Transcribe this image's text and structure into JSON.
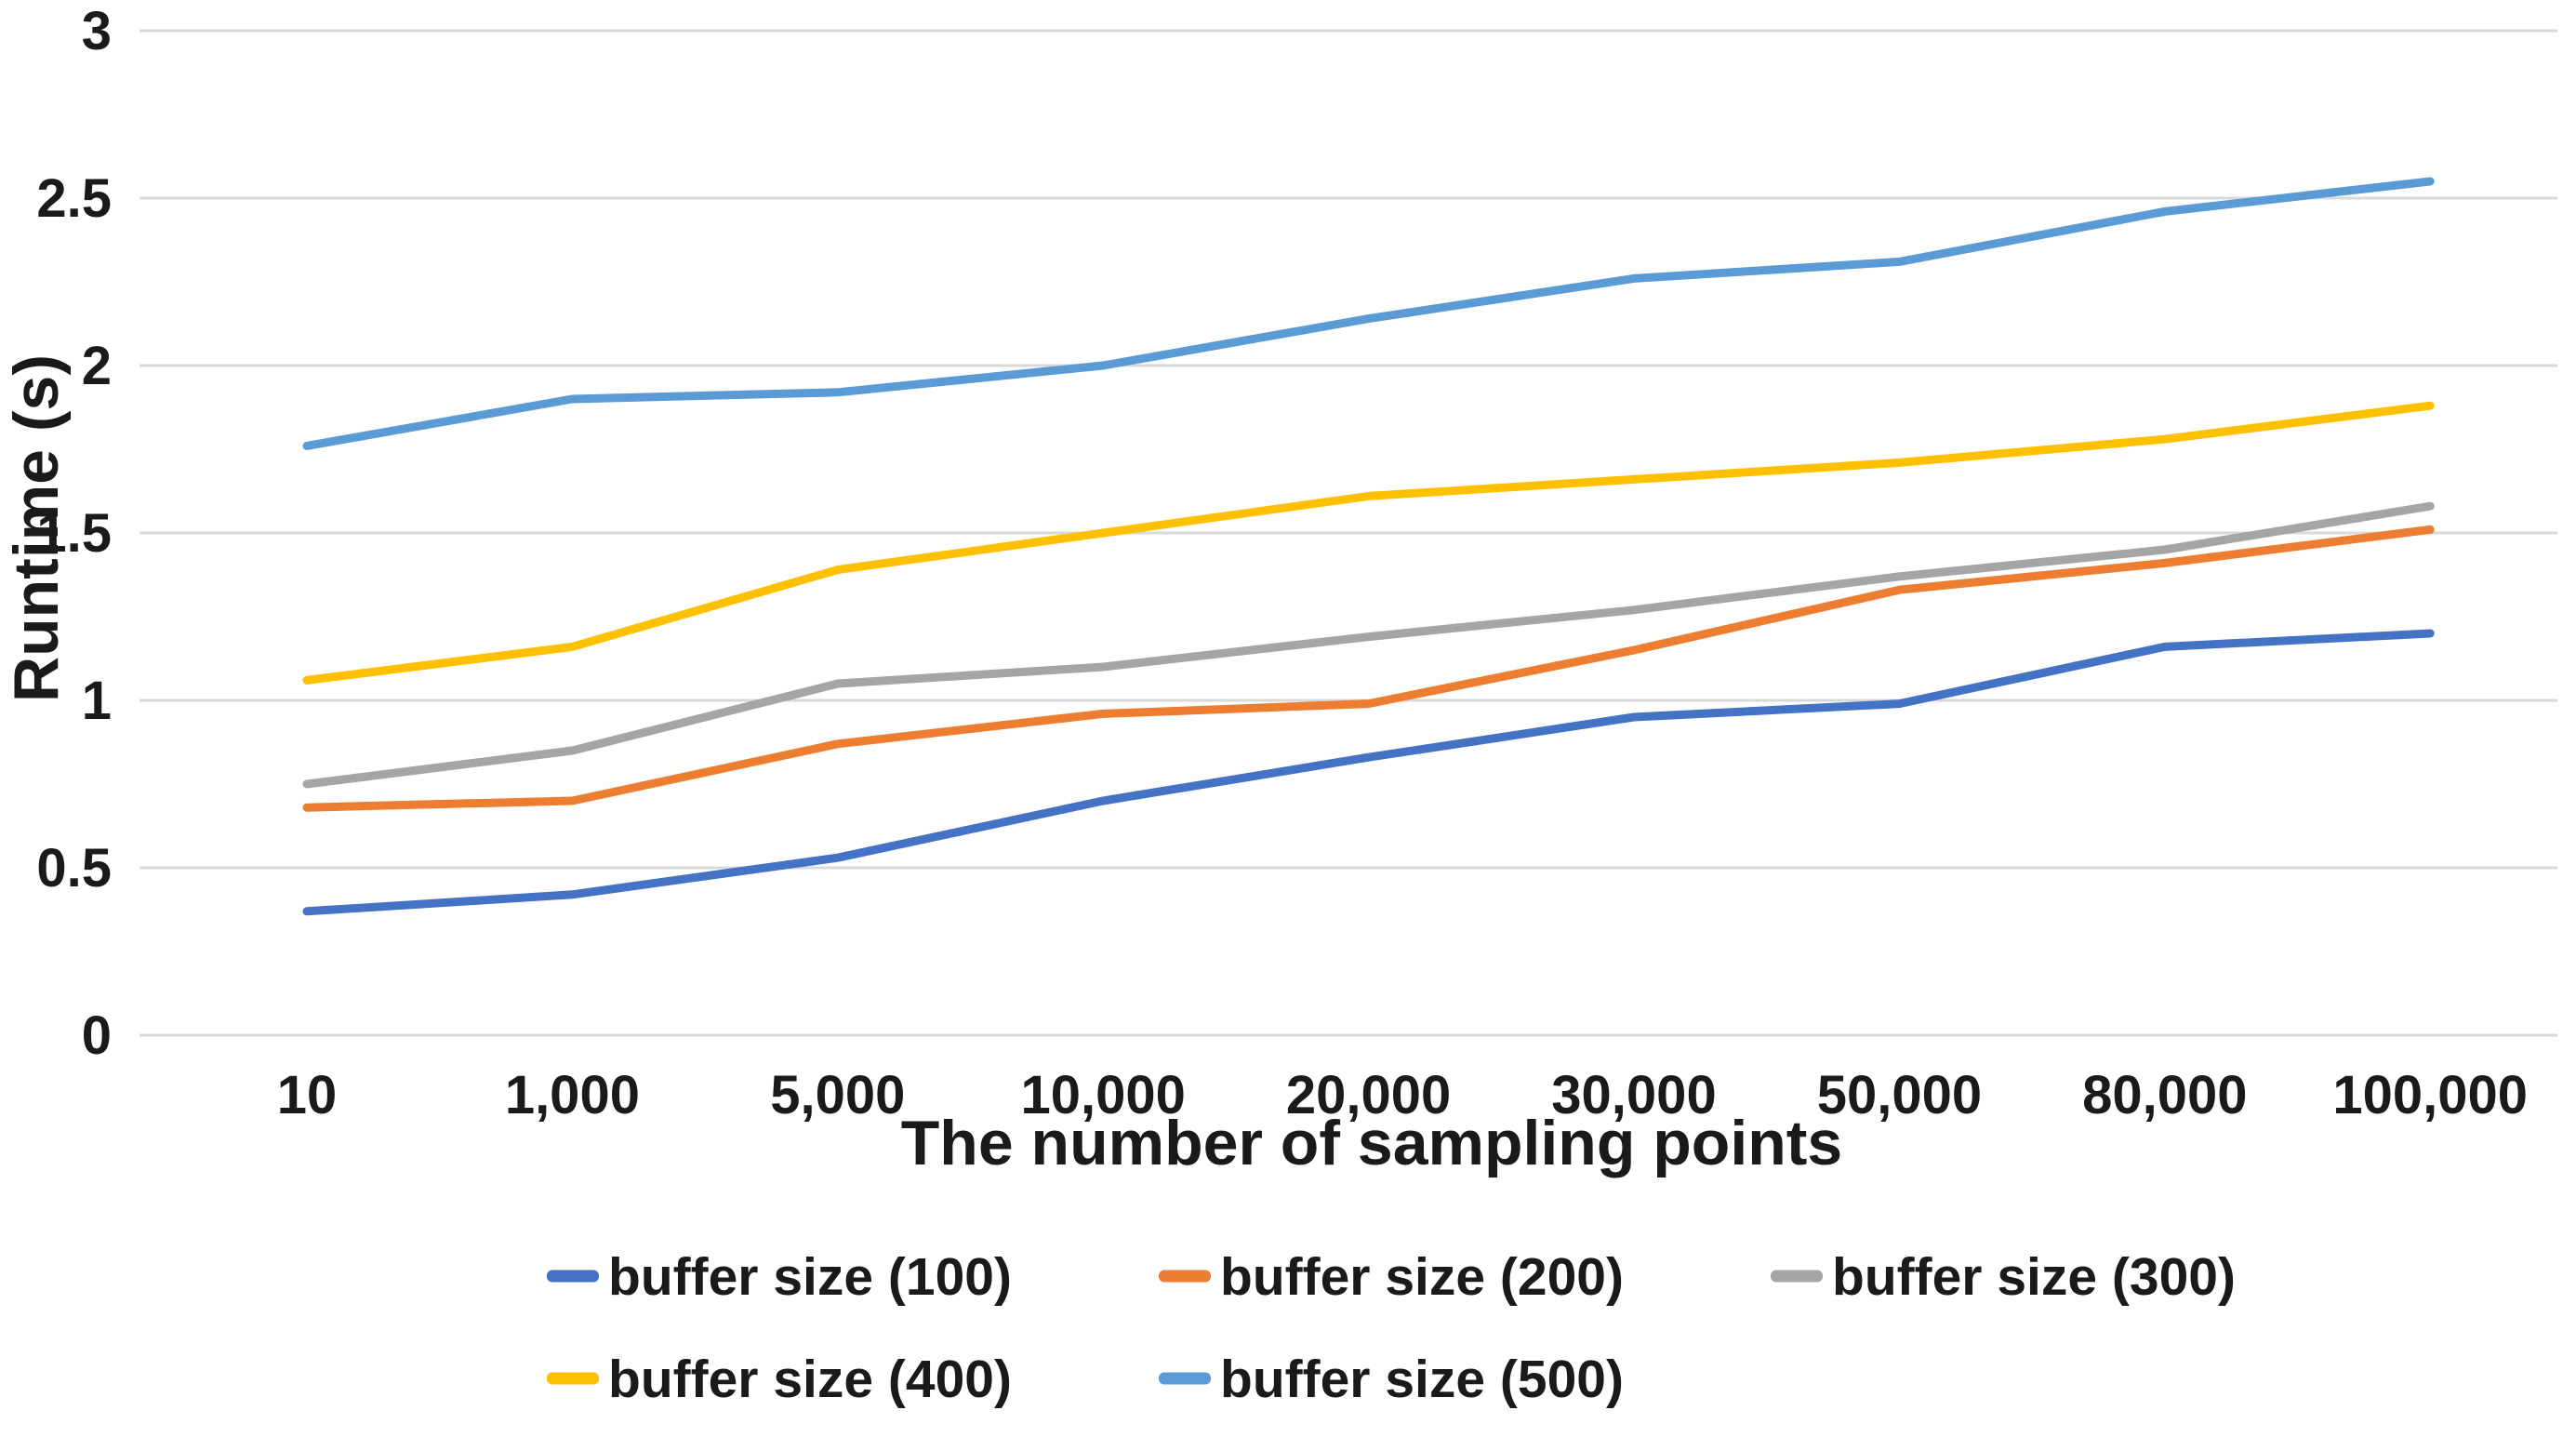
{
  "page": {
    "background": "#ffffff",
    "text_color": "#1a1a1a"
  },
  "chart_data": {
    "type": "line",
    "title": "",
    "xlabel": "The number of sampling points",
    "ylabel": "Runtime (s)",
    "categories": [
      "10",
      "1,000",
      "5,000",
      "10,000",
      "20,000",
      "30,000",
      "50,000",
      "80,000",
      "100,000"
    ],
    "series": [
      {
        "name": "buffer size (100)",
        "color": "#4472C4",
        "values": [
          0.37,
          0.42,
          0.53,
          0.7,
          0.83,
          0.95,
          0.99,
          1.16,
          1.2
        ]
      },
      {
        "name": "buffer size (200)",
        "color": "#ED7D31",
        "values": [
          0.68,
          0.7,
          0.87,
          0.96,
          0.99,
          1.15,
          1.33,
          1.41,
          1.51
        ]
      },
      {
        "name": "buffer size (300)",
        "color": "#A5A5A5",
        "values": [
          0.75,
          0.85,
          1.05,
          1.1,
          1.19,
          1.27,
          1.37,
          1.45,
          1.58
        ]
      },
      {
        "name": "buffer size (400)",
        "color": "#FFC000",
        "values": [
          1.06,
          1.16,
          1.39,
          1.5,
          1.61,
          1.66,
          1.71,
          1.78,
          1.88
        ]
      },
      {
        "name": "buffer size (500)",
        "color": "#5B9BD5",
        "values": [
          1.76,
          1.9,
          1.92,
          2.0,
          2.14,
          2.26,
          2.31,
          2.46,
          2.55
        ]
      }
    ],
    "ylim": [
      0,
      3
    ],
    "ytick_interval": 0.5,
    "ytick_labels": [
      "0",
      "0.5",
      "1",
      "1.5",
      "2",
      "2.5",
      "3"
    ],
    "grid": true,
    "gridline_color": "#D9D9D9",
    "legend_position": "bottom",
    "legend_rows": [
      [
        0,
        1,
        2
      ],
      [
        3,
        4
      ]
    ]
  }
}
